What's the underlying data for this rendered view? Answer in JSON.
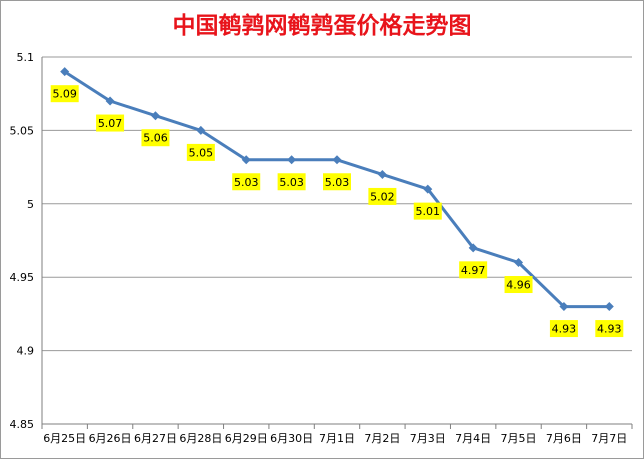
{
  "chart_data": {
    "type": "line",
    "title": "中国鹌鹑网鹌鹑蛋价格走势图",
    "categories": [
      "6月25日",
      "6月26日",
      "6月27日",
      "6月28日",
      "6月29日",
      "6月30日",
      "7月1日",
      "7月2日",
      "7月3日",
      "7月4日",
      "7月5日",
      "7月6日",
      "7月7日"
    ],
    "series": [
      {
        "values": [
          5.09,
          5.07,
          5.06,
          5.05,
          5.03,
          5.03,
          5.03,
          5.02,
          5.01,
          4.97,
          4.96,
          4.93,
          4.93
        ]
      }
    ],
    "data_labels": [
      "5.09",
      "5.07",
      "5.06",
      "5.05",
      "5.03",
      "5.03",
      "5.03",
      "5.02",
      "5.01",
      "4.97",
      "4.96",
      "4.93",
      "4.93"
    ],
    "yticks": [
      "4.85",
      "4.9",
      "4.95",
      "5",
      "5.05",
      "5.1"
    ],
    "ylim": [
      4.85,
      5.1
    ],
    "grid": true,
    "legend": "none",
    "colors": {
      "title": "#e8141b",
      "line": "#4a7ebb",
      "label_bg": "#ffff00",
      "grid": "#9a9a9a"
    }
  }
}
